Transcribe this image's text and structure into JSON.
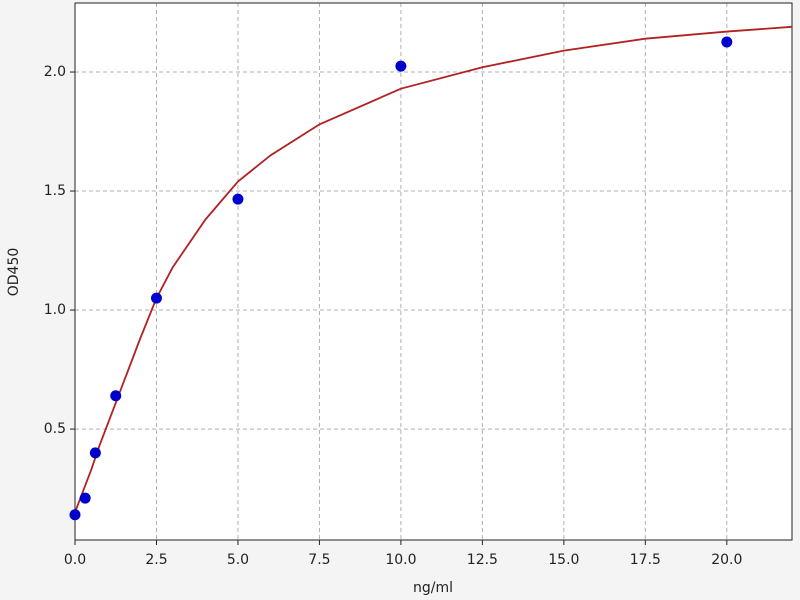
{
  "chart_data": {
    "type": "scatter",
    "x_label": "ng/ml",
    "y_label": "OD450",
    "xlim": [
      0,
      22
    ],
    "ylim": [
      0.034,
      2.29
    ],
    "xticks": [
      {
        "value": 0,
        "label": "0.0"
      },
      2.5,
      {
        "value": 5,
        "label": "5.0"
      },
      7.5,
      {
        "value": 10,
        "label": "10.0"
      },
      12.5,
      {
        "value": 15,
        "label": "15.0"
      },
      17.5,
      {
        "value": 20,
        "label": "20.0"
      }
    ],
    "yticks": [
      0.5,
      {
        "value": 1,
        "label": "1.0"
      },
      1.5,
      {
        "value": 2,
        "label": "2.0"
      }
    ],
    "grid": true,
    "series": [
      {
        "type": "line",
        "color": "#b22222",
        "x": [
          0,
          0.25,
          0.5,
          0.75,
          1,
          1.5,
          2,
          2.5,
          3,
          4,
          5,
          6,
          7.5,
          10,
          12.5,
          15,
          17.5,
          20,
          22
        ],
        "values": [
          0.15,
          0.24,
          0.33,
          0.43,
          0.52,
          0.7,
          0.88,
          1.05,
          1.18,
          1.38,
          1.54,
          1.65,
          1.78,
          1.93,
          2.02,
          2.09,
          2.14,
          2.17,
          2.19
        ]
      },
      {
        "type": "scatter",
        "color": "#0000cc",
        "x": [
          0,
          0.3125,
          0.625,
          1.25,
          2.5,
          5,
          10,
          20
        ],
        "values": [
          0.14,
          0.21,
          0.4,
          0.64,
          1.05,
          1.466,
          2.025,
          2.126
        ]
      }
    ]
  }
}
